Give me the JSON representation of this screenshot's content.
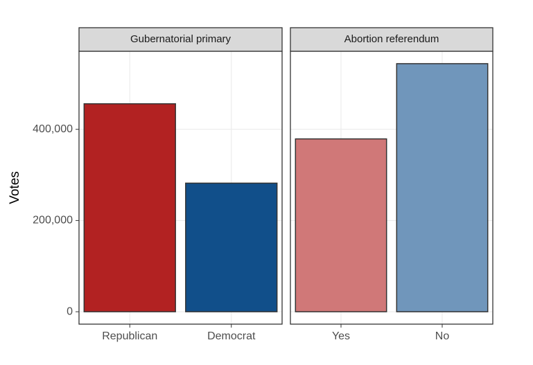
{
  "chart_data": {
    "type": "bar",
    "ylabel": "Votes",
    "ylim": [
      -27200,
      571200
    ],
    "yticks": [
      0,
      {
        "value": 200000,
        "label": "200,000"
      },
      {
        "value": 400000,
        "label": "400,000"
      }
    ],
    "grid": true,
    "facets": [
      {
        "title": "Gubernatorial primary",
        "categories": [
          "Republican",
          "Democrat"
        ],
        "values": [
          456000,
          282000
        ],
        "colors": [
          "#b22222",
          "#114f8a"
        ]
      },
      {
        "title": "Abortion referendum",
        "categories": [
          "Yes",
          "No"
        ],
        "values": [
          379000,
          544000
        ],
        "colors": [
          "#d07878",
          "#7096bb"
        ]
      }
    ]
  }
}
